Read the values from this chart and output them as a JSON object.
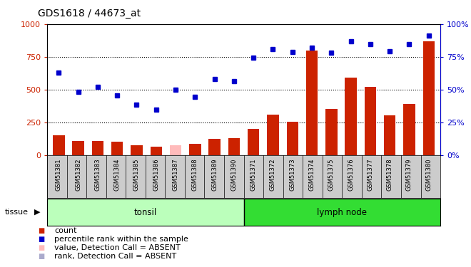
{
  "title": "GDS1618 / 44673_at",
  "samples": [
    "GSM51381",
    "GSM51382",
    "GSM51383",
    "GSM51384",
    "GSM51385",
    "GSM51386",
    "GSM51387",
    "GSM51388",
    "GSM51389",
    "GSM51390",
    "GSM51371",
    "GSM51372",
    "GSM51373",
    "GSM51374",
    "GSM51375",
    "GSM51376",
    "GSM51377",
    "GSM51378",
    "GSM51379",
    "GSM51380"
  ],
  "bar_values": [
    150,
    105,
    105,
    100,
    75,
    60,
    75,
    85,
    120,
    130,
    200,
    310,
    255,
    800,
    350,
    590,
    520,
    300,
    390,
    870
  ],
  "bar_absent": [
    false,
    false,
    false,
    false,
    false,
    false,
    true,
    false,
    false,
    false,
    false,
    false,
    false,
    false,
    false,
    false,
    false,
    false,
    false,
    false
  ],
  "dot_values": [
    630,
    480,
    520,
    455,
    385,
    345,
    500,
    445,
    580,
    565,
    745,
    810,
    785,
    820,
    780,
    870,
    845,
    790,
    845,
    910
  ],
  "dot_absent": [
    false,
    false,
    false,
    false,
    false,
    false,
    false,
    false,
    false,
    false,
    false,
    false,
    false,
    false,
    false,
    false,
    false,
    false,
    false,
    false
  ],
  "tonsil_count": 10,
  "lymph_count": 10,
  "tonsil_label": "tonsil",
  "lymph_label": "lymph node",
  "tissue_label": "tissue",
  "ylim_left": [
    0,
    1000
  ],
  "ylim_right": [
    0,
    100
  ],
  "yticks_left": [
    0,
    250,
    500,
    750,
    1000
  ],
  "yticks_right": [
    0,
    25,
    50,
    75,
    100
  ],
  "bar_color": "#cc2200",
  "bar_absent_color": "#ffbbbb",
  "dot_color": "#0000cc",
  "dot_absent_color": "#aaaacc",
  "background_color": "#ffffff",
  "plot_bg": "#ffffff",
  "left_axis_color": "#cc2200",
  "right_axis_color": "#0000cc",
  "tonsil_bg": "#bbffbb",
  "lymph_bg": "#33dd33",
  "xtick_bg": "#cccccc",
  "legend_items": [
    "count",
    "percentile rank within the sample",
    "value, Detection Call = ABSENT",
    "rank, Detection Call = ABSENT"
  ],
  "legend_colors": [
    "#cc2200",
    "#0000cc",
    "#ffbbbb",
    "#aaaacc"
  ],
  "legend_marker_shapes": [
    "s",
    "s",
    "s",
    "s"
  ]
}
